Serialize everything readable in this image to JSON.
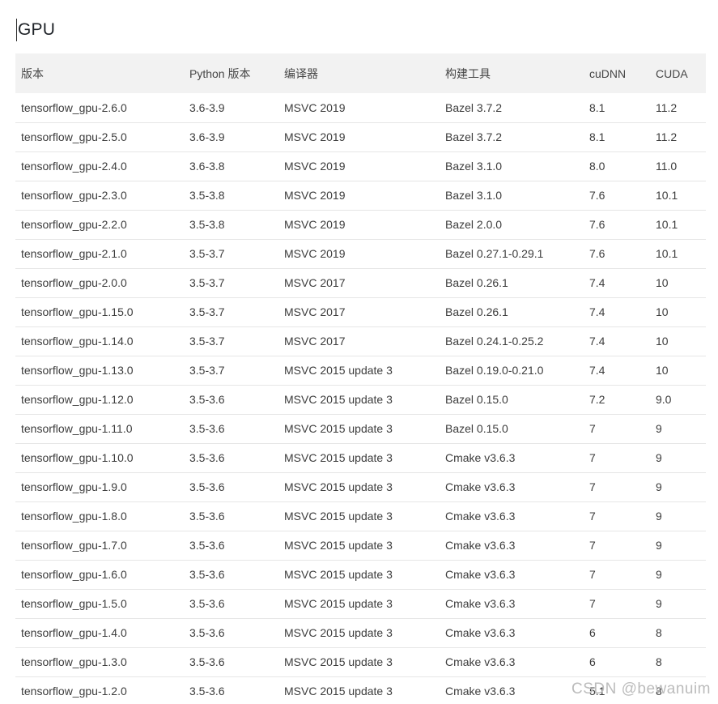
{
  "page": {
    "title": "GPU",
    "watermark": "CSDN @bewanuim"
  },
  "colors": {
    "header_background": "#f2f2f2",
    "row_border": "#e6e6e6",
    "body_text": "#3c3c3c",
    "watermark_text": "#bcbcbc"
  },
  "table": {
    "columns": [
      {
        "label": "版本"
      },
      {
        "label": "Python 版本"
      },
      {
        "label": "编译器"
      },
      {
        "label": "构建工具"
      },
      {
        "label": "cuDNN"
      },
      {
        "label": "CUDA"
      }
    ],
    "rows": [
      [
        "tensorflow_gpu-2.6.0",
        "3.6-3.9",
        "MSVC 2019",
        "Bazel 3.7.2",
        "8.1",
        "11.2"
      ],
      [
        "tensorflow_gpu-2.5.0",
        "3.6-3.9",
        "MSVC 2019",
        "Bazel 3.7.2",
        "8.1",
        "11.2"
      ],
      [
        "tensorflow_gpu-2.4.0",
        "3.6-3.8",
        "MSVC 2019",
        "Bazel 3.1.0",
        "8.0",
        "11.0"
      ],
      [
        "tensorflow_gpu-2.3.0",
        "3.5-3.8",
        "MSVC 2019",
        "Bazel 3.1.0",
        "7.6",
        "10.1"
      ],
      [
        "tensorflow_gpu-2.2.0",
        "3.5-3.8",
        "MSVC 2019",
        "Bazel 2.0.0",
        "7.6",
        "10.1"
      ],
      [
        "tensorflow_gpu-2.1.0",
        "3.5-3.7",
        "MSVC 2019",
        "Bazel 0.27.1-0.29.1",
        "7.6",
        "10.1"
      ],
      [
        "tensorflow_gpu-2.0.0",
        "3.5-3.7",
        "MSVC 2017",
        "Bazel 0.26.1",
        "7.4",
        "10"
      ],
      [
        "tensorflow_gpu-1.15.0",
        "3.5-3.7",
        "MSVC 2017",
        "Bazel 0.26.1",
        "7.4",
        "10"
      ],
      [
        "tensorflow_gpu-1.14.0",
        "3.5-3.7",
        "MSVC 2017",
        "Bazel 0.24.1-0.25.2",
        "7.4",
        "10"
      ],
      [
        "tensorflow_gpu-1.13.0",
        "3.5-3.7",
        "MSVC 2015 update 3",
        "Bazel 0.19.0-0.21.0",
        "7.4",
        "10"
      ],
      [
        "tensorflow_gpu-1.12.0",
        "3.5-3.6",
        "MSVC 2015 update 3",
        "Bazel 0.15.0",
        "7.2",
        "9.0"
      ],
      [
        "tensorflow_gpu-1.11.0",
        "3.5-3.6",
        "MSVC 2015 update 3",
        "Bazel 0.15.0",
        "7",
        "9"
      ],
      [
        "tensorflow_gpu-1.10.0",
        "3.5-3.6",
        "MSVC 2015 update 3",
        "Cmake v3.6.3",
        "7",
        "9"
      ],
      [
        "tensorflow_gpu-1.9.0",
        "3.5-3.6",
        "MSVC 2015 update 3",
        "Cmake v3.6.3",
        "7",
        "9"
      ],
      [
        "tensorflow_gpu-1.8.0",
        "3.5-3.6",
        "MSVC 2015 update 3",
        "Cmake v3.6.3",
        "7",
        "9"
      ],
      [
        "tensorflow_gpu-1.7.0",
        "3.5-3.6",
        "MSVC 2015 update 3",
        "Cmake v3.6.3",
        "7",
        "9"
      ],
      [
        "tensorflow_gpu-1.6.0",
        "3.5-3.6",
        "MSVC 2015 update 3",
        "Cmake v3.6.3",
        "7",
        "9"
      ],
      [
        "tensorflow_gpu-1.5.0",
        "3.5-3.6",
        "MSVC 2015 update 3",
        "Cmake v3.6.3",
        "7",
        "9"
      ],
      [
        "tensorflow_gpu-1.4.0",
        "3.5-3.6",
        "MSVC 2015 update 3",
        "Cmake v3.6.3",
        "6",
        "8"
      ],
      [
        "tensorflow_gpu-1.3.0",
        "3.5-3.6",
        "MSVC 2015 update 3",
        "Cmake v3.6.3",
        "6",
        "8"
      ],
      [
        "tensorflow_gpu-1.2.0",
        "3.5-3.6",
        "MSVC 2015 update 3",
        "Cmake v3.6.3",
        "5.1",
        "8"
      ]
    ]
  }
}
